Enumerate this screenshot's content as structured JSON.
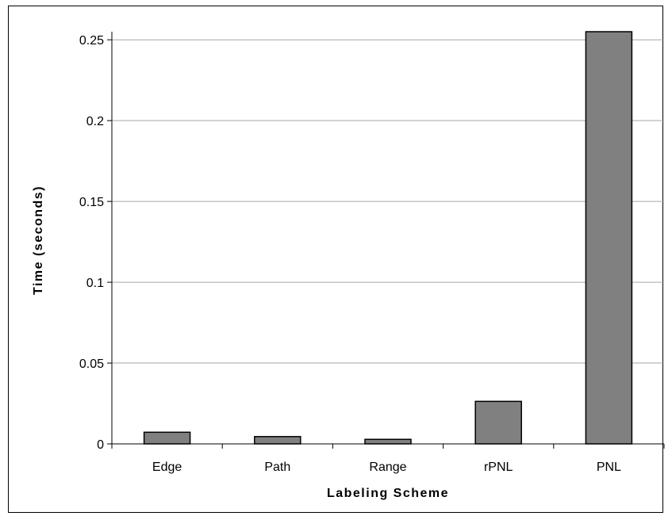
{
  "chart_data": {
    "type": "bar",
    "categories": [
      "Edge",
      "Path",
      "Range",
      "rPNL",
      "PNL"
    ],
    "values": [
      0.0072,
      0.0045,
      0.0028,
      0.0263,
      0.255
    ],
    "xlabel": "Labeling Scheme",
    "ylabel": "Time (seconds)",
    "ylim": [
      0,
      0.255
    ],
    "yticks": [
      0,
      0.05,
      0.1,
      0.15,
      0.2,
      0.25
    ],
    "ytick_labels": [
      "0",
      "0.05",
      "0.1",
      "0.15",
      "0.2",
      "0.25"
    ],
    "grid": true,
    "legend": "none",
    "bar_color": "#808080",
    "grid_color": "#a6a6a6"
  }
}
